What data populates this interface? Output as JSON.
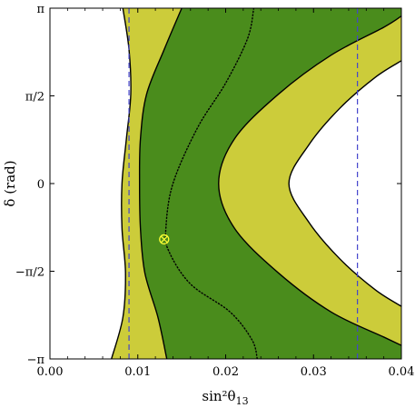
{
  "chart_data": {
    "type": "area",
    "xlabel": "sin²θ",
    "xlabel_sub": "13",
    "ylabel": "δ (rad)",
    "xlim": [
      0.0,
      0.04
    ],
    "ylim": [
      -3.1416,
      3.1416
    ],
    "x_ticks": [
      {
        "value": 0.0,
        "label": "0.00"
      },
      {
        "value": 0.01,
        "label": "0.01"
      },
      {
        "value": 0.02,
        "label": "0.02"
      },
      {
        "value": 0.03,
        "label": "0.03"
      },
      {
        "value": 0.04,
        "label": "0.04"
      }
    ],
    "y_ticks": [
      {
        "value": -3.1416,
        "label": "−π"
      },
      {
        "value": -1.5708,
        "label": "−π/2"
      },
      {
        "value": 0.0,
        "label": "0"
      },
      {
        "value": 1.5708,
        "label": "π/2"
      },
      {
        "value": 3.1416,
        "label": "π"
      }
    ],
    "regions": [
      {
        "kind": "outer-contour",
        "fill": "#cccc3a",
        "left_boundary": [
          [
            0.0083,
            3.1416
          ],
          [
            0.009,
            2.4
          ],
          [
            0.0092,
            1.6
          ],
          [
            0.0087,
            0.8
          ],
          [
            0.0082,
            0.0
          ],
          [
            0.0082,
            -0.8
          ],
          [
            0.0086,
            -1.6
          ],
          [
            0.0083,
            -2.4
          ],
          [
            0.007,
            -3.1416
          ]
        ],
        "hole_boundary": [
          [
            0.04,
            2.2
          ],
          [
            0.037,
            1.9
          ],
          [
            0.033,
            1.35
          ],
          [
            0.0295,
            0.7
          ],
          [
            0.0272,
            0.0
          ],
          [
            0.0295,
            -0.7
          ],
          [
            0.033,
            -1.35
          ],
          [
            0.037,
            -1.9
          ],
          [
            0.04,
            -2.2
          ]
        ]
      },
      {
        "kind": "inner-contour",
        "fill": "#4a8c1c",
        "left_boundary": [
          [
            0.015,
            3.1416
          ],
          [
            0.013,
            2.4
          ],
          [
            0.011,
            1.6
          ],
          [
            0.0103,
            0.8
          ],
          [
            0.0102,
            0.0
          ],
          [
            0.0103,
            -0.8
          ],
          [
            0.0108,
            -1.6
          ],
          [
            0.0123,
            -2.4
          ],
          [
            0.0133,
            -3.1416
          ]
        ],
        "hole_boundary": [
          [
            0.04,
            3.0
          ],
          [
            0.038,
            2.8
          ],
          [
            0.032,
            2.3
          ],
          [
            0.026,
            1.6
          ],
          [
            0.021,
            0.8
          ],
          [
            0.0192,
            0.0
          ],
          [
            0.021,
            -0.8
          ],
          [
            0.026,
            -1.6
          ],
          [
            0.032,
            -2.3
          ],
          [
            0.038,
            -2.75
          ],
          [
            0.04,
            -2.9
          ]
        ]
      }
    ],
    "best_fit_curve": {
      "style": "dotted",
      "color": "#000000",
      "points": [
        [
          0.0232,
          3.1416
        ],
        [
          0.0225,
          2.6
        ],
        [
          0.02,
          1.8
        ],
        [
          0.0168,
          1.0
        ],
        [
          0.014,
          0.0
        ],
        [
          0.0132,
          -0.8
        ],
        [
          0.0135,
          -1.2
        ],
        [
          0.016,
          -1.8
        ],
        [
          0.0205,
          -2.3
        ],
        [
          0.023,
          -2.8
        ],
        [
          0.0236,
          -3.1416
        ]
      ]
    },
    "vertical_lines": [
      {
        "x": 0.009,
        "style": "dashed",
        "color": "#4444cc"
      },
      {
        "x": 0.035,
        "style": "dashed",
        "color": "#4444cc"
      }
    ],
    "marker": {
      "x": 0.013,
      "y": -1.0,
      "symbol": "circle-cross",
      "color": "#ffff33"
    }
  }
}
